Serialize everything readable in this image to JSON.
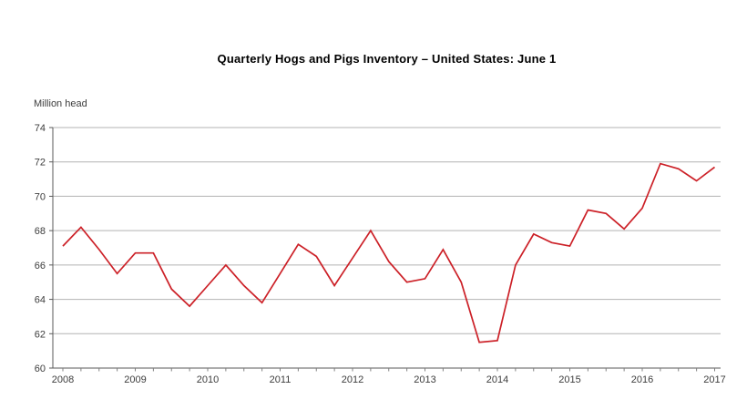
{
  "page": {
    "background": "#ffffff"
  },
  "chart_data": {
    "type": "line",
    "title": "Quarterly Hogs and Pigs Inventory – United States: June 1",
    "ylabel": "Million head",
    "xlabel": "",
    "ylim": [
      60,
      74
    ],
    "y_ticks": [
      60,
      62,
      64,
      66,
      68,
      70,
      72,
      74
    ],
    "x_tick_years": [
      "2008",
      "2009",
      "2010",
      "2011",
      "2012",
      "2013",
      "2014",
      "2015",
      "2016",
      "2017"
    ],
    "frequency": "quarterly",
    "grid": "horizontal-only",
    "legend": "none",
    "series": [
      {
        "name": "Quarterly hogs and pigs inventory",
        "start": "2008 Q1",
        "end": "2017 Q1",
        "color": "#cc2027",
        "values": [
          67.1,
          68.2,
          66.9,
          65.5,
          66.7,
          66.7,
          64.6,
          63.6,
          64.8,
          66.0,
          64.8,
          63.8,
          65.5,
          67.2,
          66.5,
          64.8,
          66.4,
          68.0,
          66.2,
          65.0,
          65.2,
          66.9,
          65.0,
          61.5,
          61.6,
          66.0,
          67.8,
          67.3,
          67.1,
          69.2,
          69.0,
          68.1,
          69.3,
          71.9,
          71.6,
          70.9,
          71.7
        ]
      }
    ],
    "colors": {
      "line": "#cc2027",
      "grid": "#b3b3b3",
      "axis": "#595959",
      "tick": "#808080",
      "label": "#3c3c3c",
      "title": "#000000",
      "background": "#ffffff"
    }
  }
}
